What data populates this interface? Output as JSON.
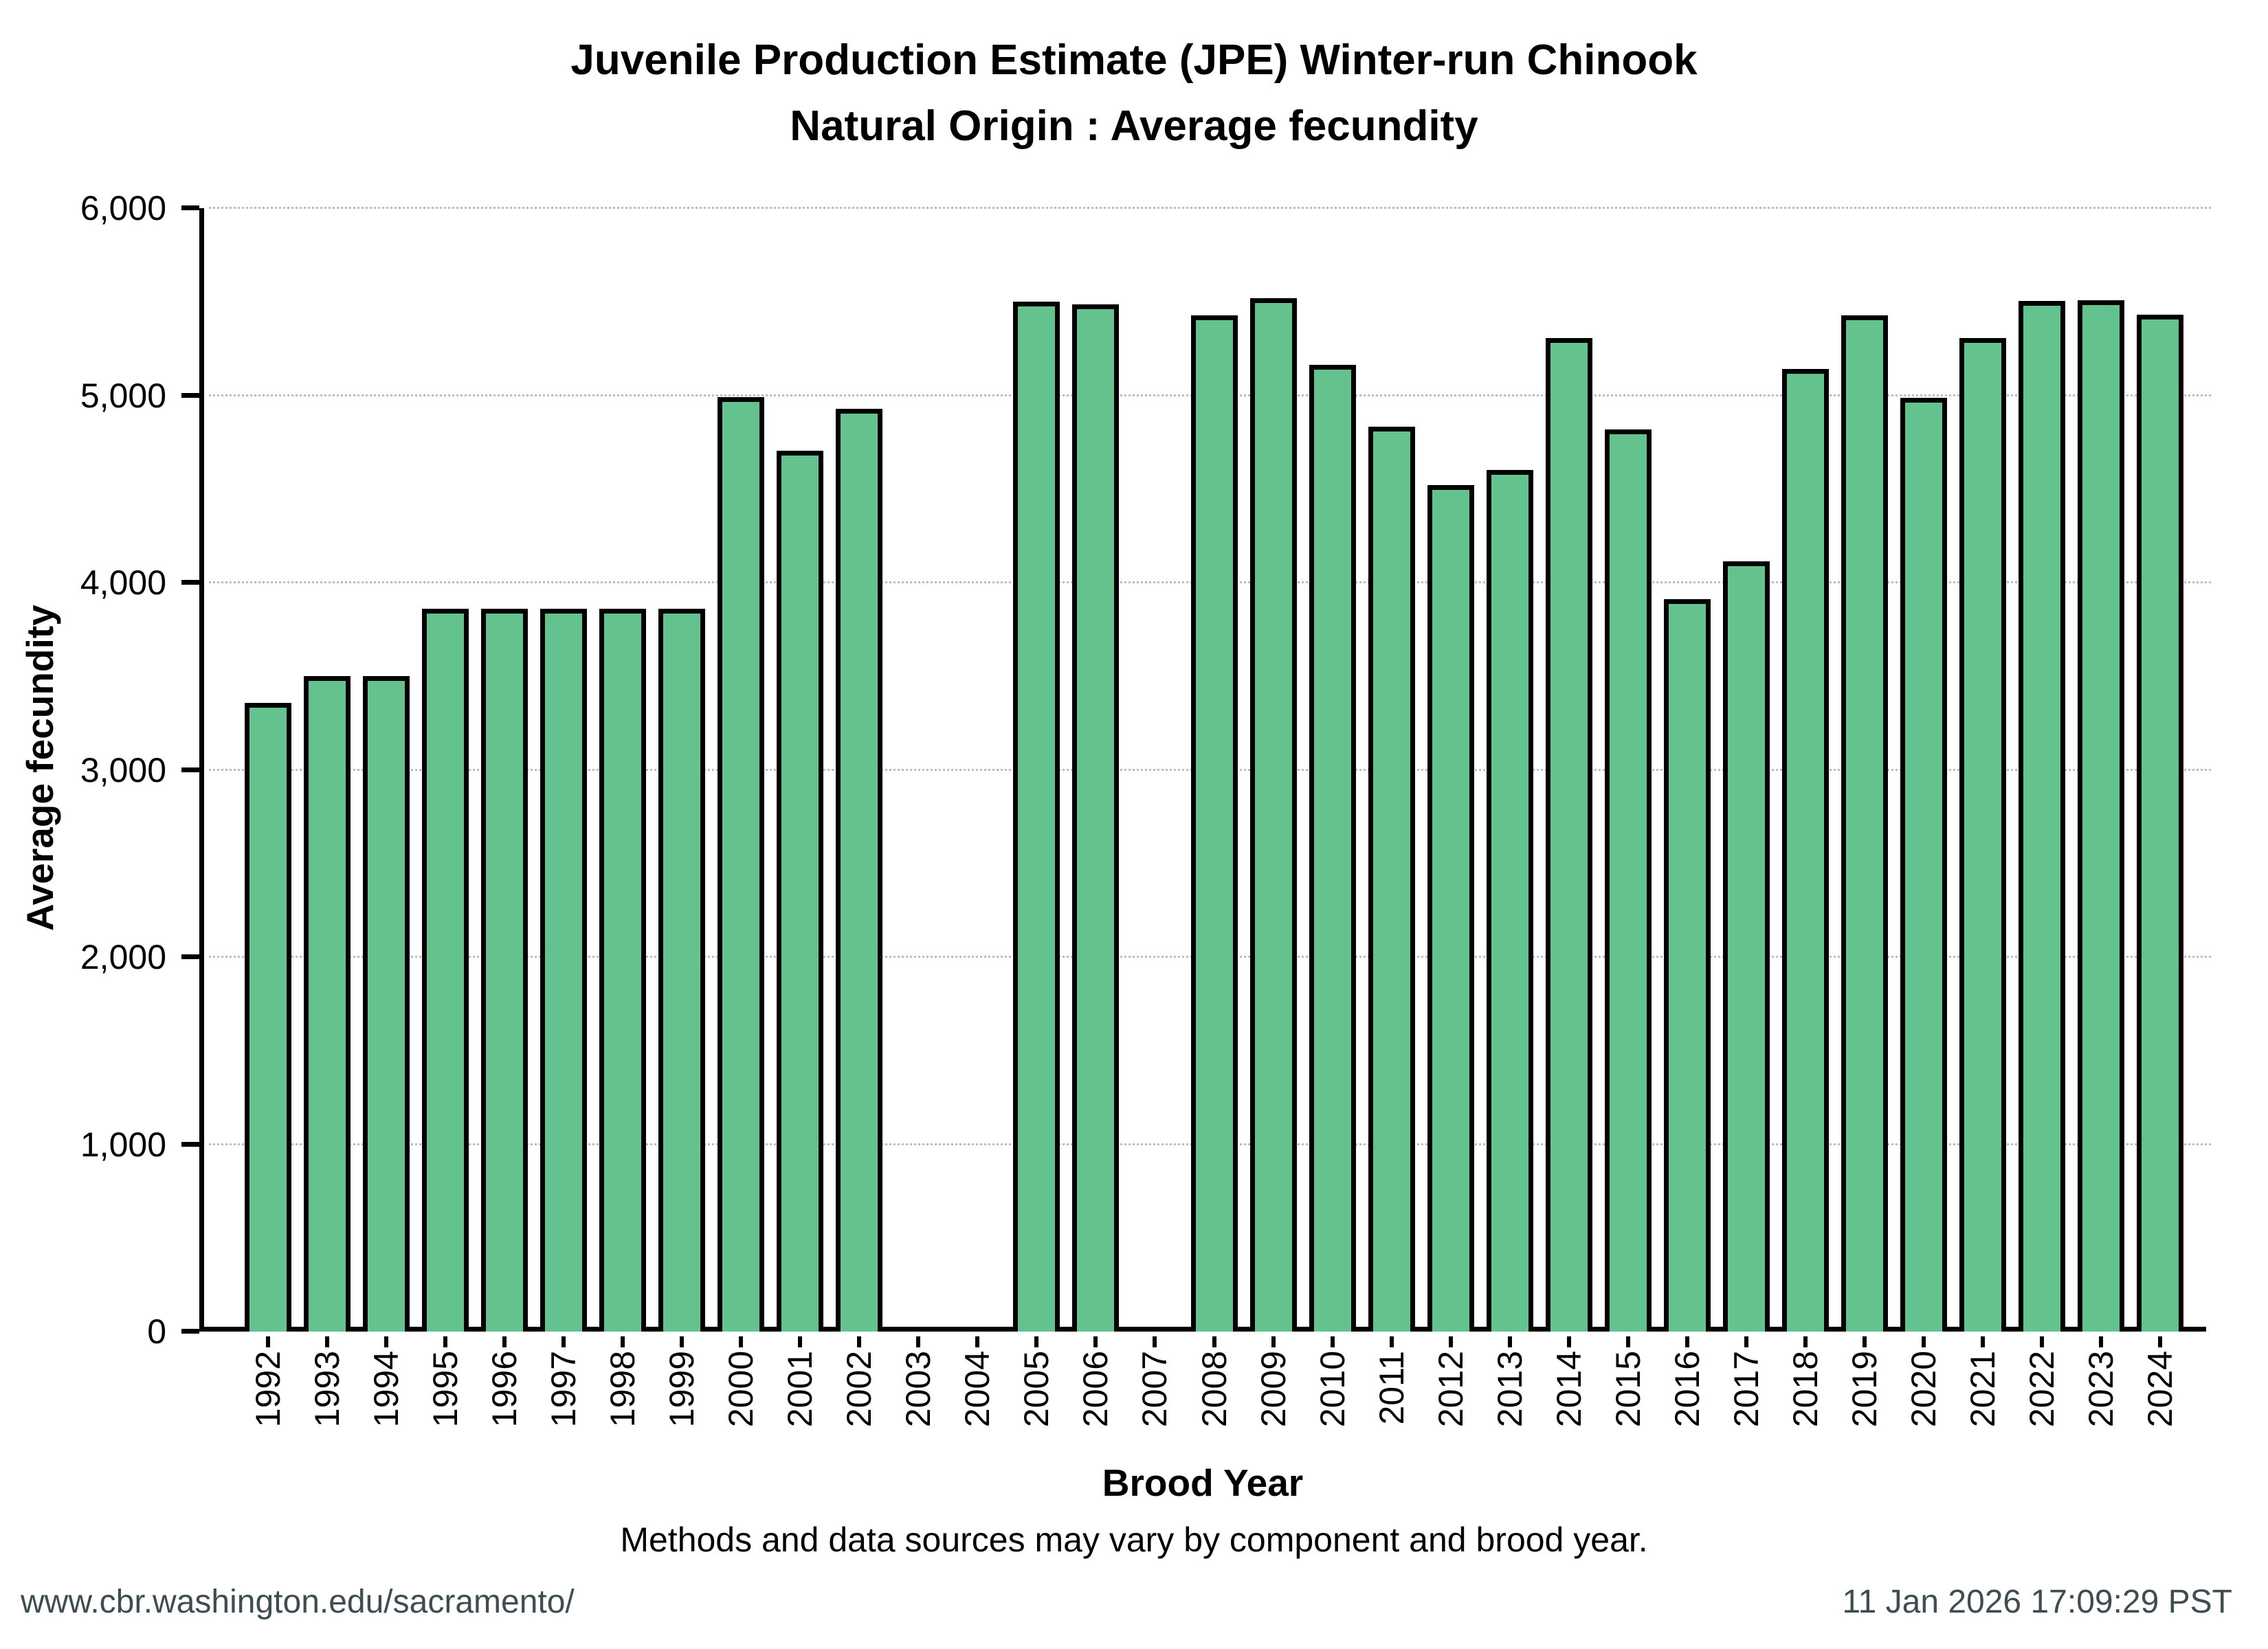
{
  "page": {
    "footer_left": "www.cbr.washington.edu/sacramento/",
    "footer_right": "11 Jan 2026 17:09:29 PST"
  },
  "chart_data": {
    "type": "bar",
    "title_line1": "Juvenile Production Estimate (JPE) Winter-run Chinook",
    "title_line2": "Natural Origin : Average fecundity",
    "xlabel": "Brood Year",
    "ylabel": "Average fecundity",
    "caption": "Methods and data sources may vary by component and brood year.",
    "categories": [
      1992,
      1993,
      1994,
      1995,
      1996,
      1997,
      1998,
      1999,
      2000,
      2001,
      2002,
      2003,
      2004,
      2005,
      2006,
      2007,
      2008,
      2009,
      2010,
      2011,
      2012,
      2013,
      2014,
      2015,
      2016,
      2017,
      2018,
      2019,
      2020,
      2021,
      2022,
      2023,
      2024
    ],
    "values": [
      3357,
      3500,
      3500,
      3859,
      3859,
      3859,
      3859,
      3859,
      4992,
      4704,
      4927,
      null,
      null,
      5500,
      5487,
      null,
      5428,
      5519,
      5163,
      4832,
      4522,
      4601,
      5305,
      4820,
      3913,
      4115,
      5143,
      5428,
      4987,
      5307,
      5503,
      5510,
      5430
    ],
    "missing_years": [
      2003,
      2004,
      2007
    ],
    "ylim": [
      0,
      6000
    ],
    "ytick_values": [
      0,
      1000,
      2000,
      3000,
      4000,
      5000,
      6000
    ],
    "ytick_labels": [
      "0",
      "1,000",
      "2,000",
      "3,000",
      "4,000",
      "5,000",
      "6,000"
    ],
    "grid": "horizontal dotted gridlines at each 1,000",
    "legend": "none",
    "bar_color": "#63c28d",
    "bar_border_color": "#000000",
    "footer_text_color": "#3e4d52"
  }
}
